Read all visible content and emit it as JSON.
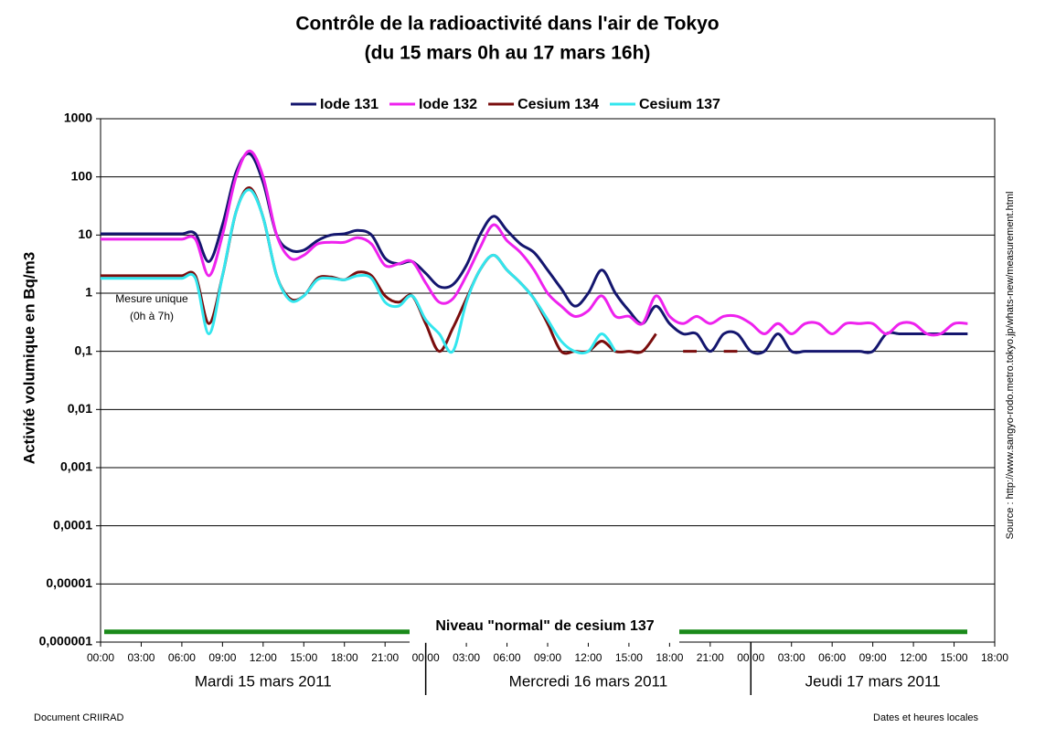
{
  "chart_data": {
    "type": "line",
    "title": "Contrôle de la radioactivité dans l'air de Tokyo",
    "subtitle": "(du 15 mars 0h au 17 mars 16h)",
    "y_label": "Activité volumique en Bq/m3",
    "source": "Source : http://www.sangyo-rodo.metro.tokyo.jp/whats-new/measurement.html",
    "footer_left": "Document CRIIRAD",
    "footer_right": "Dates et heures locales",
    "annotation": [
      "Mesure unique",
      "(0h à 7h)"
    ],
    "normal_level": {
      "value": 1.5e-06,
      "label": "Niveau \"normal\" de cesium 137",
      "color": "#1a8a1a"
    },
    "days": [
      "Mardi 15 mars 2011",
      "Mercredi 16 mars 2011",
      "Jeudi 17 mars 2011"
    ],
    "day_separators": [
      24,
      48
    ],
    "log_scale": true,
    "grid": true,
    "legend": "top",
    "xlim": [
      0,
      66
    ],
    "ylim": [
      1e-06,
      1000
    ],
    "xticks": [
      {
        "value": 0,
        "label": "00:00"
      },
      {
        "value": 3,
        "label": "03:00"
      },
      {
        "value": 6,
        "label": "06:00"
      },
      {
        "value": 9,
        "label": "09:00"
      },
      {
        "value": 12,
        "label": "12:00"
      },
      {
        "value": 15,
        "label": "15:00"
      },
      {
        "value": 18,
        "label": "18:00"
      },
      {
        "value": 21,
        "label": "21:00"
      },
      {
        "value": 24,
        "label": "00:00"
      },
      {
        "value": 27,
        "label": "03:00"
      },
      {
        "value": 30,
        "label": "06:00"
      },
      {
        "value": 33,
        "label": "09:00"
      },
      {
        "value": 36,
        "label": "12:00"
      },
      {
        "value": 39,
        "label": "15:00"
      },
      {
        "value": 42,
        "label": "18:00"
      },
      {
        "value": 45,
        "label": "21:00"
      },
      {
        "value": 48,
        "label": "00:00"
      },
      {
        "value": 51,
        "label": "03:00"
      },
      {
        "value": 54,
        "label": "06:00"
      },
      {
        "value": 57,
        "label": "09:00"
      },
      {
        "value": 60,
        "label": "12:00"
      },
      {
        "value": 63,
        "label": "15:00"
      },
      {
        "value": 66,
        "label": "18:00"
      }
    ],
    "yticks": [
      1000,
      100,
      10,
      1,
      {
        "value": 0.1,
        "label": "0,1"
      },
      {
        "value": 0.01,
        "label": "0,01"
      },
      {
        "value": 0.001,
        "label": "0,001"
      },
      {
        "value": 0.0001,
        "label": "0,0001"
      },
      {
        "value": 1e-05,
        "label": "0,00001"
      },
      {
        "value": 1e-06,
        "label": "0,000001"
      }
    ],
    "x": [
      0,
      1,
      2,
      3,
      4,
      5,
      6,
      7,
      8,
      9,
      10,
      11,
      12,
      13,
      14,
      15,
      16,
      17,
      18,
      19,
      20,
      21,
      22,
      23,
      24,
      25,
      26,
      27,
      28,
      29,
      30,
      31,
      32,
      33,
      34,
      35,
      36,
      37,
      38,
      39,
      40,
      41,
      42,
      43,
      44,
      45,
      46,
      47,
      48,
      49,
      50,
      51,
      52,
      53,
      54,
      55,
      56,
      57,
      58,
      59,
      60,
      61,
      62,
      63,
      64
    ],
    "series": [
      {
        "name": "Iode 131",
        "color": "#14166e",
        "values": [
          10.5,
          10.5,
          10.5,
          10.5,
          10.5,
          10.5,
          10.5,
          10.5,
          3.5,
          15,
          120,
          250,
          80,
          10,
          5.5,
          5.5,
          8,
          10,
          10.5,
          12,
          10,
          4,
          3.2,
          3.5,
          2.2,
          1.3,
          1.4,
          3,
          10,
          21,
          12,
          7,
          5,
          2.5,
          1.2,
          0.6,
          1,
          2.5,
          1,
          0.5,
          0.3,
          0.6,
          0.3,
          0.2,
          0.2,
          0.1,
          0.2,
          0.2,
          0.1,
          0.1,
          0.2,
          0.1,
          0.1,
          0.1,
          0.1,
          0.1,
          0.1,
          0.1,
          0.2,
          0.2,
          0.2,
          0.2,
          0.2,
          0.2,
          0.2
        ]
      },
      {
        "name": "Iode 132",
        "color": "#ee22ee",
        "values": [
          8.5,
          8.5,
          8.5,
          8.5,
          8.5,
          8.5,
          8.5,
          8.5,
          2,
          10,
          100,
          280,
          100,
          10,
          4,
          4.5,
          7,
          7.5,
          7.5,
          9,
          7,
          3,
          3.2,
          3.5,
          1.5,
          0.7,
          0.8,
          2,
          6,
          15,
          8,
          5,
          2.5,
          1,
          0.6,
          0.4,
          0.5,
          0.9,
          0.4,
          0.4,
          0.3,
          0.9,
          0.4,
          0.3,
          0.4,
          0.3,
          0.4,
          0.4,
          0.3,
          0.2,
          0.3,
          0.2,
          0.3,
          0.3,
          0.2,
          0.3,
          0.3,
          0.3,
          0.2,
          0.3,
          0.3,
          0.2,
          0.2,
          0.3,
          0.3
        ]
      },
      {
        "name": "Cesium 134",
        "color": "#7a0d0d",
        "values": [
          2,
          2,
          2,
          2,
          2,
          2,
          2,
          2,
          0.3,
          2,
          25,
          65,
          20,
          2,
          0.8,
          0.9,
          1.8,
          1.9,
          1.7,
          2.3,
          2,
          0.9,
          0.7,
          0.9,
          0.3,
          0.1,
          0.25,
          0.8,
          2.5,
          4.5,
          2.5,
          1.5,
          0.8,
          0.3,
          0.1,
          0.1,
          0.1,
          0.15,
          0.1,
          0.1,
          0.1,
          0.2,
          null,
          0.1,
          0.1,
          null,
          0.1,
          0.1,
          null,
          null,
          null,
          null,
          null,
          null,
          null,
          null,
          null,
          null,
          null,
          null,
          null,
          null,
          null,
          null,
          null
        ]
      },
      {
        "name": "Cesium 137",
        "color": "#33e6ee",
        "values": [
          1.8,
          1.8,
          1.8,
          1.8,
          1.8,
          1.8,
          1.8,
          1.8,
          0.2,
          2,
          25,
          60,
          20,
          2,
          0.75,
          0.9,
          1.7,
          1.8,
          1.7,
          2,
          1.8,
          0.7,
          0.6,
          0.9,
          0.35,
          0.2,
          0.1,
          0.7,
          2.5,
          4.5,
          2.5,
          1.5,
          0.8,
          0.35,
          0.15,
          0.1,
          0.1,
          0.2,
          0.1,
          null,
          null,
          null,
          null,
          null,
          null,
          null,
          null,
          null,
          null,
          null,
          null,
          null,
          null,
          null,
          null,
          null,
          null,
          null,
          null,
          null,
          null,
          null,
          null,
          null,
          null
        ]
      }
    ]
  }
}
